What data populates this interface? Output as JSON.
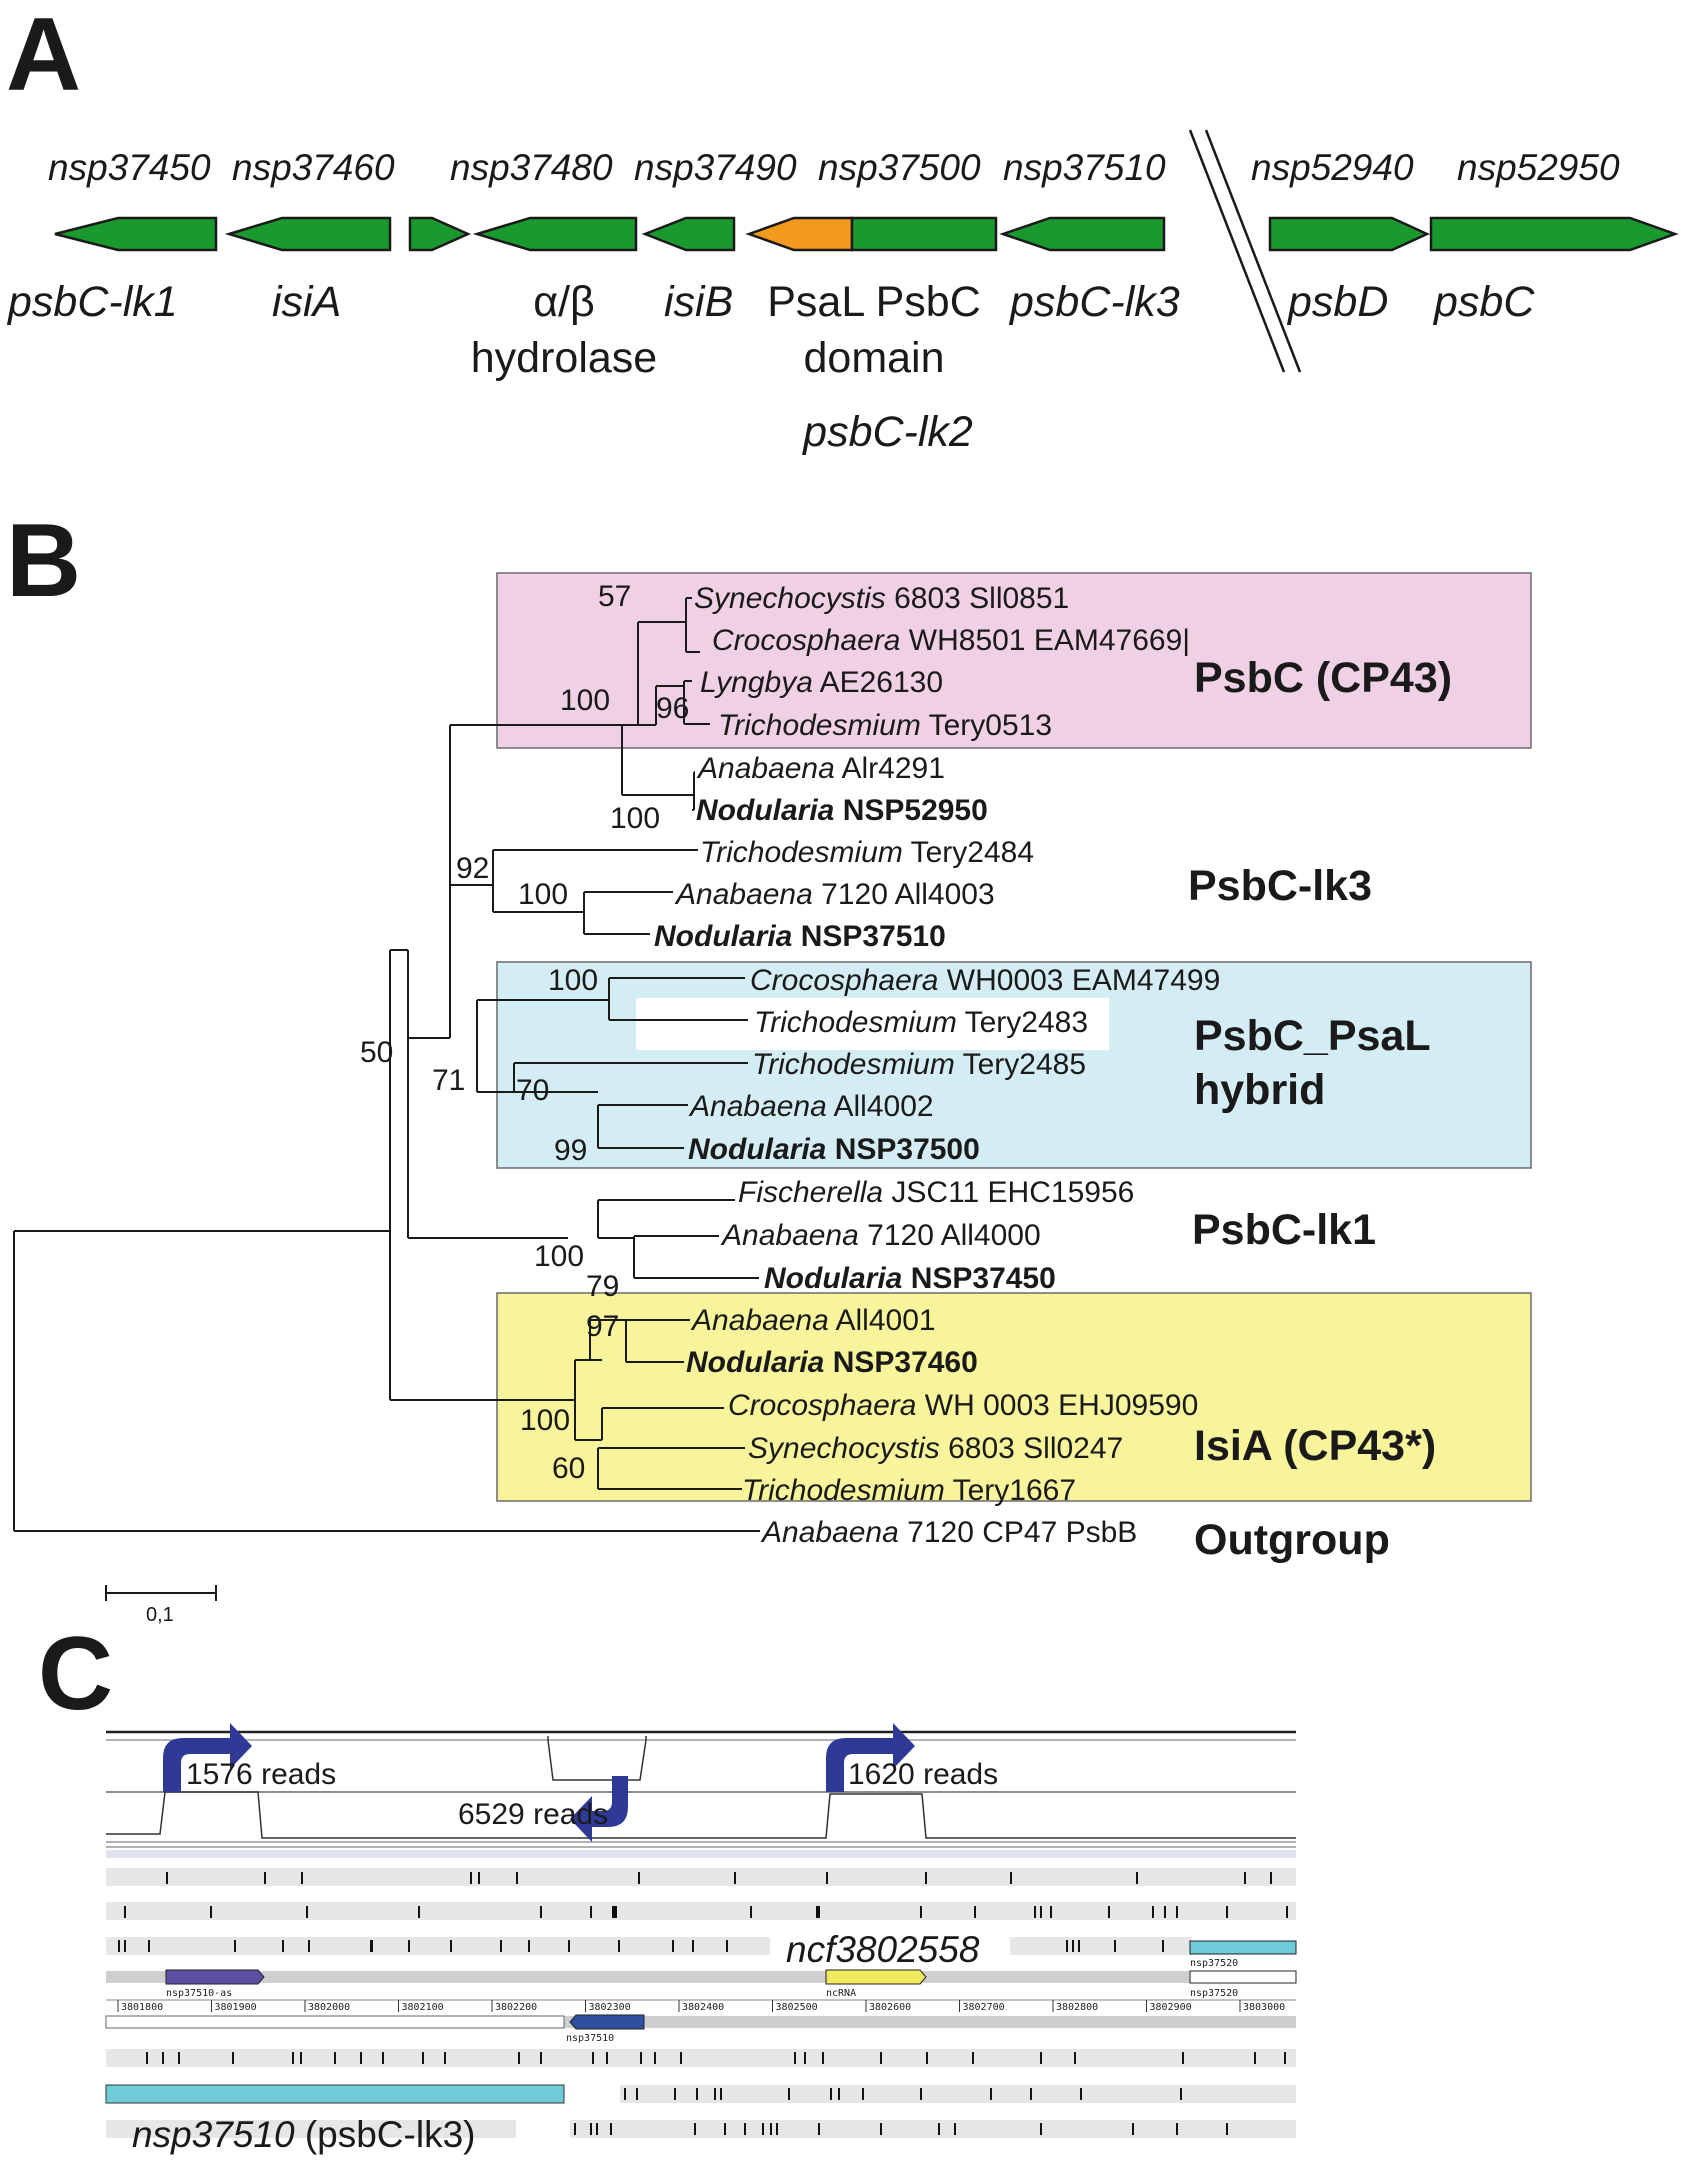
{
  "panels": {
    "a": "A",
    "b": "B",
    "c": "C"
  },
  "panel_a": {
    "gene_ids": [
      "nsp37450",
      "nsp37460",
      "nsp37480",
      "nsp37490",
      "nsp37500",
      "nsp37510",
      "nsp52940",
      "nsp52950"
    ],
    "labels": {
      "psbC_lk1": "psbC-lk1",
      "isiA": "isiA",
      "hydrolase_line1": "α/β",
      "hydrolase_line2": "hydrolase",
      "isiB": "isiB",
      "psal_psbc_line1": "PsaL PsbC",
      "psal_psbc_line2": "domain",
      "psbC_lk3": "psbC-lk3",
      "psbD": "psbD",
      "psbC": "psbC",
      "psbC_lk2": "psbC-lk2"
    },
    "colors": {
      "gene": "#1a9a2e",
      "psal_domain": "#f39a1e"
    }
  },
  "panel_b": {
    "taxa": [
      {
        "genus": "Synechocystis",
        "rest": " 6803 Sll0851"
      },
      {
        "genus": "Crocosphaera",
        "rest": " WH8501 EAM47669|"
      },
      {
        "genus": "Lyngbya",
        "rest": " AE26130"
      },
      {
        "genus": "Trichodesmium",
        "rest": " Tery0513"
      },
      {
        "genus": "Anabaena",
        "rest": " Alr4291"
      },
      {
        "genus": "Nodularia",
        "rest": " NSP52950"
      },
      {
        "genus": "Trichodesmium",
        "rest": " Tery2484"
      },
      {
        "genus": "Anabaena",
        "rest": " 7120 All4003"
      },
      {
        "genus": "Nodularia",
        "rest": " NSP37510"
      },
      {
        "genus": "Crocosphaera",
        "rest": " WH0003 EAM47499"
      },
      {
        "genus": "Trichodesmium",
        "rest": " Tery2483"
      },
      {
        "genus": "Trichodesmium",
        "rest": " Tery2485"
      },
      {
        "genus": "Anabaena",
        "rest": " All4002"
      },
      {
        "genus": "Nodularia",
        "rest": " NSP37500"
      },
      {
        "genus": "Fischerella",
        "rest": " JSC11 EHC15956"
      },
      {
        "genus": "Anabaena",
        "rest": " 7120 All4000"
      },
      {
        "genus": "Nodularia",
        "rest": " NSP37450"
      },
      {
        "genus": "Anabaena",
        "rest": " All4001"
      },
      {
        "genus": "Nodularia",
        "rest": " NSP37460"
      },
      {
        "genus": "Crocosphaera",
        "rest": " WH 0003 EHJ09590"
      },
      {
        "genus": "Synechocystis",
        "rest": " 6803 Sll0247"
      },
      {
        "genus": "Trichodesmium",
        "rest": " Tery1667"
      },
      {
        "genus": "Anabaena",
        "rest": " 7120 CP47 PsbB"
      }
    ],
    "bootstrap": [
      "57",
      "100",
      "96",
      "100",
      "92",
      "100",
      "100",
      "71",
      "70",
      "99",
      "50",
      "100",
      "79",
      "97",
      "100",
      "60"
    ],
    "groups": {
      "psbc": "PsbC (CP43)",
      "lk3": "PsbC-lk3",
      "hybrid_line1": "PsbC_PsaL",
      "hybrid_line2": "hybrid",
      "lk1": "PsbC-lk1",
      "isia": "IsiA (CP43*)",
      "outgroup": "Outgroup"
    },
    "scale_label": "0,1",
    "colors": {
      "psbc_box": "#efd0e4",
      "hybrid_box": "#d4ecf3",
      "isia_box": "#f7f49b"
    }
  },
  "panel_c": {
    "reads": [
      "1576 reads",
      "6529 reads",
      "1620 reads"
    ],
    "ruler_ticks": [
      "3801800",
      "3801900",
      "3802000",
      "3802100",
      "3802200",
      "3802300",
      "3802400",
      "3802500",
      "3802600",
      "3802700",
      "3802800",
      "3802900",
      "3803000"
    ],
    "feature_labels": {
      "as": "nsp37510-as",
      "ncrna": "ncRNA",
      "nsp37510": "nsp37510",
      "nsp37520_top": "nsp37520",
      "nsp37520_bottom": "nsp37520"
    },
    "big_labels": {
      "ncf": "ncf3802558",
      "gene_italic": "nsp37510",
      "gene_paren": " (psbC-lk3)"
    },
    "colors": {
      "tss_arrow": "#2f3a96",
      "gene_bar": "#6fcbd8",
      "ncrna": "#f2ea5e",
      "as": "#5a4fa3"
    }
  }
}
